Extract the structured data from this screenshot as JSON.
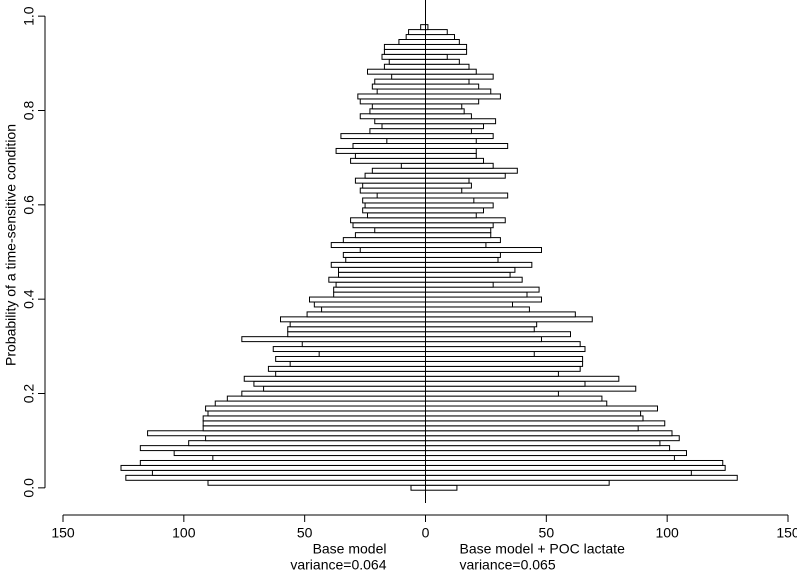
{
  "chart_data": {
    "type": "histogram",
    "y_label": "Probability of a time-sensitive condition",
    "bins": [
      -0.005,
      0.0055,
      0.016,
      0.0265,
      0.037,
      0.0475,
      0.058,
      0.0685,
      0.079,
      0.0895,
      0.1,
      0.1105,
      0.121,
      0.1315,
      0.142,
      0.1525,
      0.163,
      0.1735,
      0.184,
      0.1945,
      0.205,
      0.2155,
      0.226,
      0.2365,
      0.247,
      0.2575,
      0.268,
      0.2785,
      0.289,
      0.2995,
      0.31,
      0.3205,
      0.331,
      0.3415,
      0.352,
      0.3625,
      0.373,
      0.3835,
      0.394,
      0.4045,
      0.415,
      0.4255,
      0.436,
      0.4465,
      0.457,
      0.4675,
      0.478,
      0.4885,
      0.499,
      0.5095,
      0.52,
      0.5305,
      0.541,
      0.5515,
      0.562,
      0.5725,
      0.583,
      0.5935,
      0.604,
      0.6145,
      0.625,
      0.6355,
      0.646,
      0.6565,
      0.667,
      0.6775,
      0.688,
      0.6985,
      0.709,
      0.7195,
      0.73,
      0.7405,
      0.751,
      0.7615,
      0.772,
      0.7825,
      0.793,
      0.8035,
      0.814,
      0.8245,
      0.835,
      0.8455,
      0.856,
      0.8665,
      0.877,
      0.8875,
      0.898,
      0.9085,
      0.919,
      0.9295,
      0.94,
      0.9505,
      0.961,
      0.9715,
      0.982
    ],
    "series": [
      {
        "name": "Base model",
        "subtitle": "variance=0.064",
        "side": "left",
        "color": "#ffffff",
        "values": [
          6,
          90,
          124,
          113,
          126,
          118,
          88,
          104,
          118,
          98,
          91,
          115,
          92,
          92,
          92,
          90,
          91,
          87,
          82,
          76,
          67,
          71,
          75,
          62,
          65,
          56,
          62,
          44,
          63,
          51,
          76,
          57,
          57,
          56,
          60,
          49,
          43,
          46,
          48,
          38,
          38,
          37,
          40,
          36,
          36,
          39,
          33,
          34,
          27,
          39,
          34,
          29,
          21,
          30,
          31,
          24,
          26,
          25,
          26,
          20,
          27,
          26,
          29,
          25,
          22,
          10,
          31,
          29,
          37,
          30,
          16,
          35,
          23,
          18,
          21,
          27,
          23,
          22,
          27,
          28,
          20,
          22,
          21,
          14,
          24,
          17,
          15,
          18,
          17,
          17,
          11,
          8,
          7,
          2
        ]
      },
      {
        "name": "Base model + POC lactate",
        "subtitle": "variance=0.065",
        "side": "right",
        "color": "#ffffff",
        "values": [
          13,
          76,
          129,
          110,
          124,
          123,
          103,
          108,
          101,
          97,
          105,
          102,
          88,
          99,
          90,
          89,
          96,
          75,
          73,
          55,
          87,
          66,
          80,
          55,
          64,
          65,
          65,
          45,
          66,
          64,
          48,
          60,
          45,
          46,
          69,
          62,
          43,
          36,
          48,
          42,
          47,
          28,
          40,
          35,
          37,
          44,
          30,
          31,
          48,
          25,
          31,
          27,
          27,
          28,
          33,
          21,
          24,
          28,
          20,
          34,
          15,
          19,
          18,
          33,
          38,
          28,
          24,
          21,
          21,
          34,
          21,
          28,
          19,
          24,
          29,
          19,
          16,
          15,
          22,
          31,
          27,
          22,
          18,
          28,
          21,
          18,
          14,
          9,
          17,
          17,
          14,
          12,
          9,
          1
        ]
      }
    ],
    "xlim": [
      -150,
      150
    ],
    "xticks": [
      {
        "value": -150,
        "label": "150"
      },
      {
        "value": -100,
        "label": "100"
      },
      {
        "value": -50,
        "label": "50"
      },
      0,
      50,
      100,
      150
    ],
    "ylim": [
      -0.03,
      1.03
    ],
    "yticks": [
      {
        "value": 0,
        "label": "0.0"
      },
      {
        "value": 0.2,
        "label": "0.2"
      },
      {
        "value": 0.4,
        "label": "0.4"
      },
      {
        "value": 0.6,
        "label": "0.6"
      },
      {
        "value": 0.8,
        "label": "0.8"
      },
      {
        "value": 1,
        "label": "1.0"
      }
    ],
    "bar_stroke": "#000000"
  }
}
